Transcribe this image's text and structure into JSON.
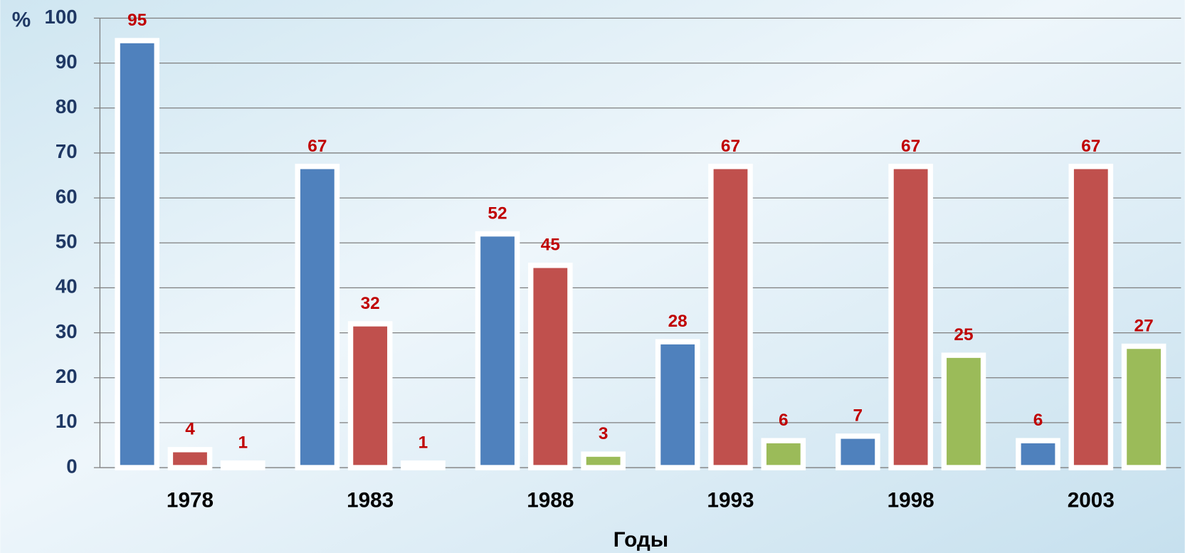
{
  "chart_data": {
    "type": "bar",
    "y_label": "%",
    "x_label": "Годы",
    "categories": [
      "1978",
      "1983",
      "1988",
      "1993",
      "1998",
      "2003"
    ],
    "series": [
      {
        "color": "#4f81bd",
        "values": [
          95,
          67,
          52,
          28,
          7,
          6
        ]
      },
      {
        "color": "#c0504d",
        "values": [
          4,
          32,
          45,
          67,
          67,
          67
        ]
      },
      {
        "color": "#9bbb59",
        "values": [
          1,
          1,
          3,
          6,
          25,
          27
        ]
      }
    ],
    "ylim": [
      0,
      100
    ],
    "yticks": [
      0,
      10,
      20,
      30,
      40,
      50,
      60,
      70,
      80,
      90,
      100
    ],
    "grid": true
  }
}
